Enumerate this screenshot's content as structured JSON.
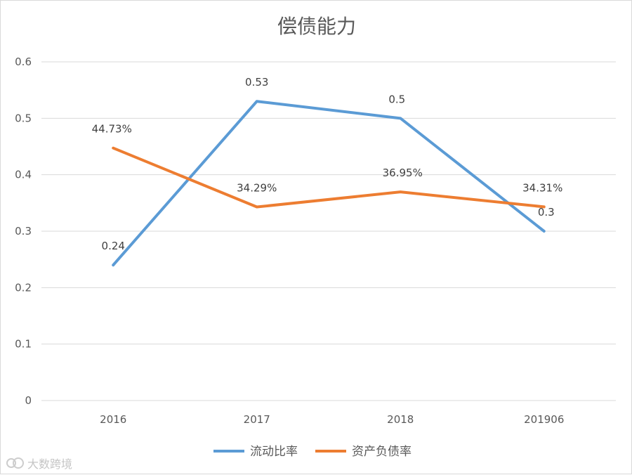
{
  "chart_data": {
    "type": "line",
    "title": "偿债能力",
    "categories": [
      "2016",
      "2017",
      "2018",
      "201906"
    ],
    "ylim": [
      0,
      0.6
    ],
    "yticks": [
      "0",
      "0.1",
      "0.2",
      "0.3",
      "0.4",
      "0.5",
      "0.6"
    ],
    "grid": true,
    "legend_position": "bottom",
    "series": [
      {
        "name": "流动比率",
        "color": "#5B9BD5",
        "values": [
          0.24,
          0.53,
          0.5,
          0.3
        ],
        "labels": [
          "0.24",
          "0.53",
          "0.5",
          "0.3"
        ]
      },
      {
        "name": "资产负债率",
        "color": "#ED7D31",
        "values": [
          0.4473,
          0.3429,
          0.3695,
          0.3431
        ],
        "labels": [
          "44.73%",
          "34.29%",
          "36.95%",
          "34.31%"
        ]
      }
    ]
  },
  "watermark": {
    "text": "大数跨境"
  }
}
